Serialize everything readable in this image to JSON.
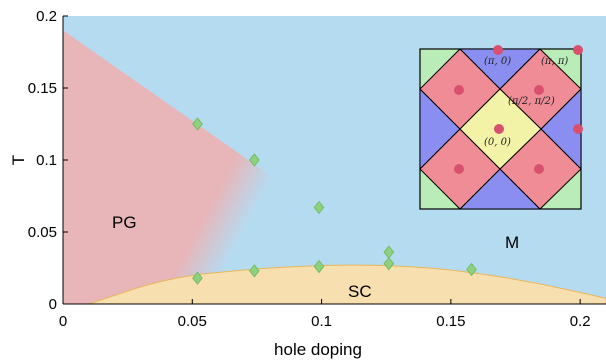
{
  "chart_data": {
    "type": "scatter",
    "title": "",
    "xlabel": "hole doping",
    "ylabel": "T",
    "xlim": [
      0,
      0.21
    ],
    "ylim": [
      0,
      0.2
    ],
    "xticks": [
      0,
      0.05,
      0.1,
      0.15,
      0.2
    ],
    "xtick_labels": [
      "0",
      "0.05",
      "0.1",
      "0.15",
      "0.2"
    ],
    "yticks": [
      0,
      0.05,
      0.1,
      0.15,
      0.2
    ],
    "ytick_labels": [
      "0",
      "0.05",
      "0.1",
      "0.15",
      "0.2"
    ],
    "grid": false,
    "regions": [
      {
        "label": "PG",
        "label_at": [
          0.026,
          0.058
        ],
        "color": "#e8b5b8"
      },
      {
        "label": "SC",
        "label_at": [
          0.115,
          0.012
        ],
        "color": "#f8dfb0"
      },
      {
        "label": "M",
        "label_at": [
          0.174,
          0.044
        ],
        "color": "#b5dbf1"
      }
    ],
    "pseudogap_boundary": [
      [
        0,
        0.19
      ],
      [
        0.125,
        0.033
      ]
    ],
    "sc_dome": [
      [
        0.01,
        0
      ],
      [
        0.04,
        0.018
      ],
      [
        0.07,
        0.024
      ],
      [
        0.1,
        0.027
      ],
      [
        0.125,
        0.027
      ],
      [
        0.15,
        0.024
      ],
      [
        0.18,
        0.016
      ],
      [
        0.21,
        0.004
      ]
    ],
    "points": [
      {
        "x": 0.052,
        "y": 0.125
      },
      {
        "x": 0.074,
        "y": 0.1
      },
      {
        "x": 0.099,
        "y": 0.067
      },
      {
        "x": 0.126,
        "y": 0.036
      },
      {
        "x": 0.052,
        "y": 0.018
      },
      {
        "x": 0.074,
        "y": 0.023
      },
      {
        "x": 0.099,
        "y": 0.026
      },
      {
        "x": 0.126,
        "y": 0.028
      },
      {
        "x": 0.158,
        "y": 0.024
      }
    ],
    "marker_color": "#8fd07e",
    "inset": {
      "labels": [
        "(π, 0)",
        "(π, π)",
        "(π/2, π/2)",
        "(0, 0)"
      ],
      "colors": {
        "green": "#b9ecb6",
        "blue": "#8a8ef0",
        "red": "#f08c95",
        "yellow": "#f3f3a8",
        "dot": "#d9506e"
      }
    }
  }
}
